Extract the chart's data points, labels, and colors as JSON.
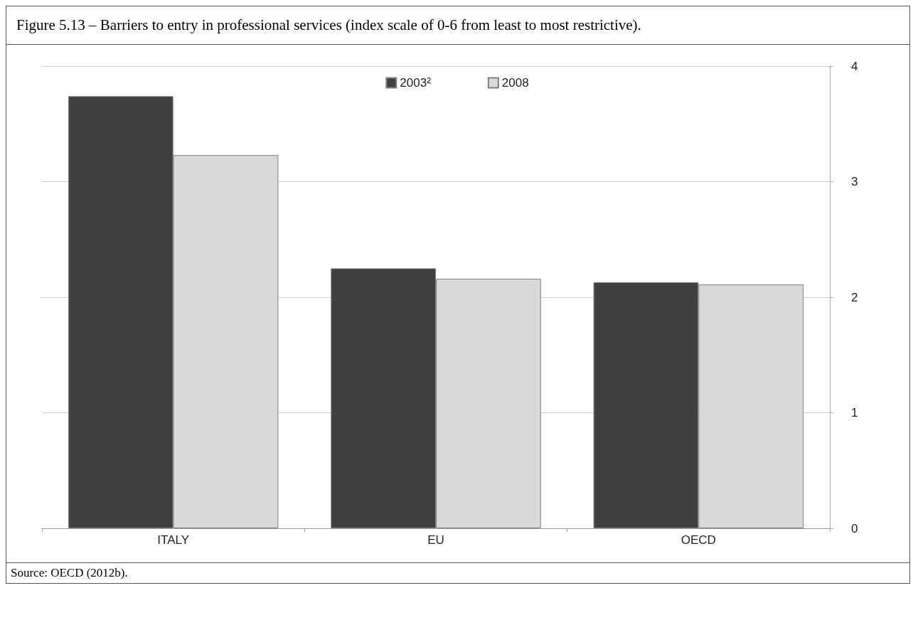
{
  "chart_data": {
    "type": "bar",
    "title": "Figure 5.13 – Barriers to entry in professional services (index scale of 0-6 from least to most restrictive).",
    "categories": [
      "ITALY",
      "EU",
      "OECD"
    ],
    "series": [
      {
        "name": "2003²",
        "color": "#404040",
        "values": [
          3.74,
          2.25,
          2.13
        ]
      },
      {
        "name": "2008",
        "color": "#d9d9d9",
        "values": [
          3.23,
          2.16,
          2.11
        ]
      }
    ],
    "ylim": [
      0,
      4
    ],
    "yticks": [
      0,
      1,
      2,
      3,
      4
    ],
    "grid": "y",
    "legend": "top",
    "annotations": [
      "Source: OECD (2012b)."
    ]
  }
}
